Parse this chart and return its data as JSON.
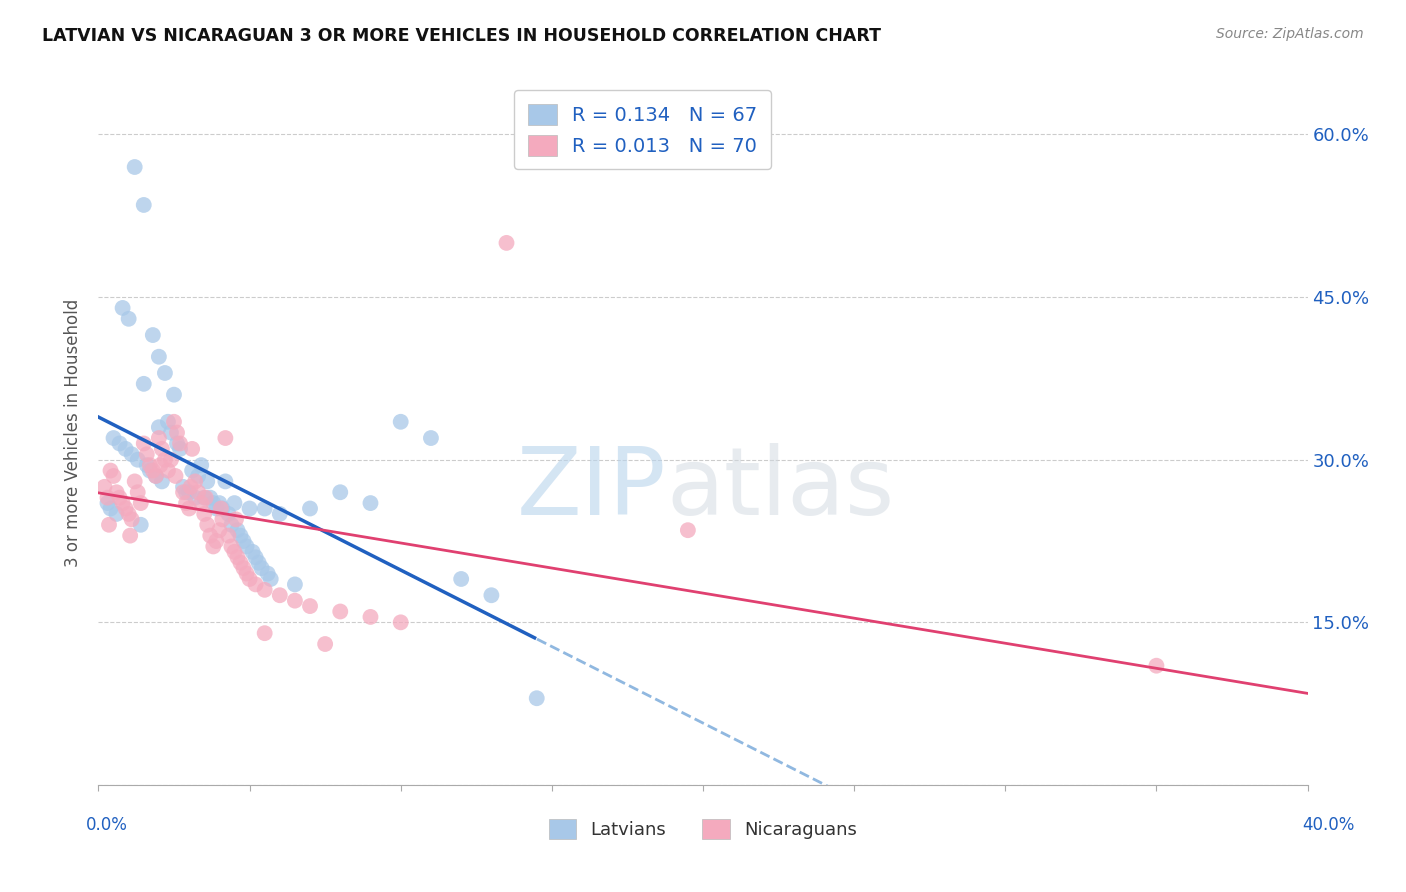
{
  "title": "LATVIAN VS NICARAGUAN 3 OR MORE VEHICLES IN HOUSEHOLD CORRELATION CHART",
  "source": "Source: ZipAtlas.com",
  "ylabel": "3 or more Vehicles in Household",
  "xlim": [
    0.0,
    40.0
  ],
  "ylim": [
    0.0,
    65.0
  ],
  "yticks_right": [
    15.0,
    30.0,
    45.0,
    60.0
  ],
  "latvian_color": "#A8C8E8",
  "nicaraguan_color": "#F4AABE",
  "latvian_line_color": "#2060C0",
  "latvian_dash_color": "#90B8E0",
  "nicaraguan_line_color": "#E04070",
  "latvian_R": 0.134,
  "latvian_N": 67,
  "nicaraguan_R": 0.013,
  "nicaraguan_N": 70,
  "legend_label_1": "Latvians",
  "legend_label_2": "Nicaraguans",
  "grid_color": "#CCCCCC",
  "background_color": "#FFFFFF",
  "latvian_x": [
    1.2,
    1.5,
    0.8,
    1.0,
    1.8,
    2.0,
    2.2,
    1.5,
    2.5,
    2.0,
    0.5,
    0.7,
    0.9,
    1.1,
    1.3,
    1.6,
    1.7,
    1.9,
    2.1,
    2.3,
    2.4,
    2.6,
    2.7,
    2.8,
    2.9,
    3.0,
    3.2,
    3.5,
    4.0,
    4.5,
    5.0,
    5.5,
    6.0,
    7.0,
    8.0,
    9.0,
    0.3,
    0.4,
    0.6,
    1.4,
    3.1,
    3.3,
    3.4,
    3.6,
    3.7,
    3.8,
    3.9,
    4.1,
    4.2,
    4.3,
    4.4,
    4.6,
    4.7,
    4.8,
    4.9,
    5.1,
    5.2,
    5.3,
    5.4,
    5.6,
    5.7,
    6.5,
    10.0,
    11.0,
    12.0,
    13.0,
    14.5
  ],
  "latvian_y": [
    57.0,
    53.5,
    44.0,
    43.0,
    41.5,
    39.5,
    38.0,
    37.0,
    36.0,
    33.0,
    32.0,
    31.5,
    31.0,
    30.5,
    30.0,
    29.5,
    29.0,
    28.5,
    28.0,
    33.5,
    32.5,
    31.5,
    31.0,
    27.5,
    27.0,
    27.0,
    26.5,
    26.5,
    26.0,
    26.0,
    25.5,
    25.5,
    25.0,
    25.5,
    27.0,
    26.0,
    26.0,
    25.5,
    25.0,
    24.0,
    29.0,
    28.5,
    29.5,
    28.0,
    26.5,
    26.0,
    25.5,
    25.5,
    28.0,
    25.0,
    24.0,
    23.5,
    23.0,
    22.5,
    22.0,
    21.5,
    21.0,
    20.5,
    20.0,
    19.5,
    19.0,
    18.5,
    33.5,
    32.0,
    19.0,
    17.5,
    8.0
  ],
  "nicaraguan_x": [
    0.2,
    0.4,
    0.5,
    0.6,
    0.7,
    0.8,
    0.9,
    1.0,
    1.1,
    1.2,
    1.3,
    1.4,
    1.5,
    1.6,
    1.7,
    1.8,
    1.9,
    2.0,
    2.1,
    2.2,
    2.3,
    2.4,
    2.5,
    2.6,
    2.7,
    2.8,
    2.9,
    3.0,
    3.1,
    3.2,
    3.3,
    3.4,
    3.5,
    3.6,
    3.7,
    3.8,
    3.9,
    4.0,
    4.1,
    4.2,
    4.3,
    4.4,
    4.5,
    4.6,
    4.7,
    4.8,
    4.9,
    5.0,
    5.2,
    5.5,
    6.0,
    6.5,
    7.0,
    8.0,
    9.0,
    10.0,
    13.5,
    19.5,
    35.0,
    0.3,
    0.35,
    1.05,
    2.05,
    2.55,
    3.05,
    3.55,
    4.05,
    4.55,
    5.5,
    7.5
  ],
  "nicaraguan_y": [
    27.5,
    29.0,
    28.5,
    27.0,
    26.5,
    26.0,
    25.5,
    25.0,
    24.5,
    28.0,
    27.0,
    26.0,
    31.5,
    30.5,
    29.5,
    29.0,
    28.5,
    32.0,
    31.0,
    30.0,
    29.0,
    30.0,
    33.5,
    32.5,
    31.5,
    27.0,
    26.0,
    25.5,
    31.0,
    28.0,
    27.0,
    26.0,
    25.0,
    24.0,
    23.0,
    22.0,
    22.5,
    23.5,
    24.5,
    32.0,
    23.0,
    22.0,
    21.5,
    21.0,
    20.5,
    20.0,
    19.5,
    19.0,
    18.5,
    18.0,
    17.5,
    17.0,
    16.5,
    16.0,
    15.5,
    15.0,
    50.0,
    23.5,
    11.0,
    26.5,
    24.0,
    23.0,
    29.5,
    28.5,
    27.5,
    26.5,
    25.5,
    24.5,
    14.0,
    13.0
  ]
}
